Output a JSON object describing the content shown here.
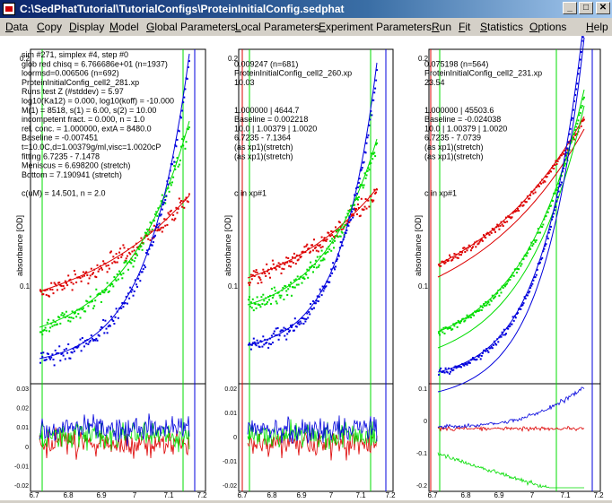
{
  "window": {
    "title": "C:\\SedPhatTutorial\\TutorialConfigs\\ProteinInitialConfig.sedphat",
    "buttons": [
      "_",
      "□",
      "✕"
    ]
  },
  "menu": [
    "Data",
    "Copy",
    "Display",
    "Model",
    "Global Parameters",
    "Local Parameters",
    "Experiment Parameters",
    "Run",
    "Fit",
    "Statistics",
    "Options",
    "Help"
  ],
  "colors": {
    "series1": "#dd0000",
    "series2": "#00dd00",
    "series3": "#0000dd",
    "window_title": "#0a246a",
    "menu_bg": "#d4d0c8"
  },
  "panels": [
    {
      "text_lines": [
        "sim #271, simplex #4, step #0",
        "glob red chisq = 6.766686e+01 (n=1937)",
        "loormsd=0.006506 (n=692)",
        "ProteinInitialConfig_cell2_281.xp",
        "Runs test Z (#stddev) = 5.97",
        "log10(Ka12) = 0.000, log10(koff) = -10.000",
        "M(1) = 8518, s(1) = 6.00, s(2) = 10.00",
        "incompetent fract. = 0.000, n = 1.0",
        "rel. conc. = 1.000000, extA = 8480.0",
        "Baseline = -0.007451",
        "t=10.0C,d=1.00379g/ml,visc=1.0020cP",
        "fitting 6.7235 - 7.1478",
        "Meniscus = 6.698200  (stretch)",
        "Bottom = 7.190941  (stretch)",
        "",
        "c(uM) = 14.501, n = 2.0"
      ],
      "ylabel": "absorbance [OD]",
      "yticks": [
        "0.2",
        "0.1"
      ],
      "res_ticks": [
        "0.03",
        "0.02",
        "0.01",
        "0",
        "-0.01",
        "-0.02"
      ],
      "xticks": [
        "6.7",
        "6.8",
        "6.9",
        "7",
        "7.1",
        "7.2"
      ]
    },
    {
      "text_lines": [
        "",
        "0.009247 (n=681)",
        "ProteinInitialConfig_cell2_260.xp",
        "10.03",
        "",
        "",
        "1.000000 | 4644.7",
        "Baseline = 0.002218",
        "10.0 | 1.00379 | 1.0020",
        "6.7235 - 7.1364",
        "(as xp1)(stretch)",
        "(as xp1)(stretch)",
        "",
        "",
        "",
        "c in xp#1"
      ],
      "ylabel": "absorbance [OD]",
      "yticks": [
        "0.2",
        "0.1"
      ],
      "res_ticks": [
        "0.02",
        "0.01",
        "0",
        "-0.01",
        "-0.02"
      ],
      "xticks": [
        "6.7",
        "6.8",
        "6.9",
        "7",
        "7.1",
        "7.2"
      ]
    },
    {
      "text_lines": [
        "",
        "0.075198 (n=564)",
        "ProteinInitialConfig_cell2_231.xp",
        "23.54",
        "",
        "",
        "1.000000 | 45503.6",
        "Baseline = -0.024038",
        "10.0 | 1.00379 | 1.0020",
        "6.7235 - 7.0739",
        "(as xp1)(stretch)",
        "(as xp1)(stretch)",
        "",
        "",
        "",
        "c in xp#1"
      ],
      "ylabel": "absorbance [OD]",
      "yticks": [
        "0.2",
        "0.1"
      ],
      "res_ticks": [
        "0.1",
        "0",
        "-0.1",
        "-0.2"
      ],
      "xticks": [
        "6.7",
        "6.8",
        "6.9",
        "7",
        "7.1",
        "7.2"
      ]
    }
  ]
}
